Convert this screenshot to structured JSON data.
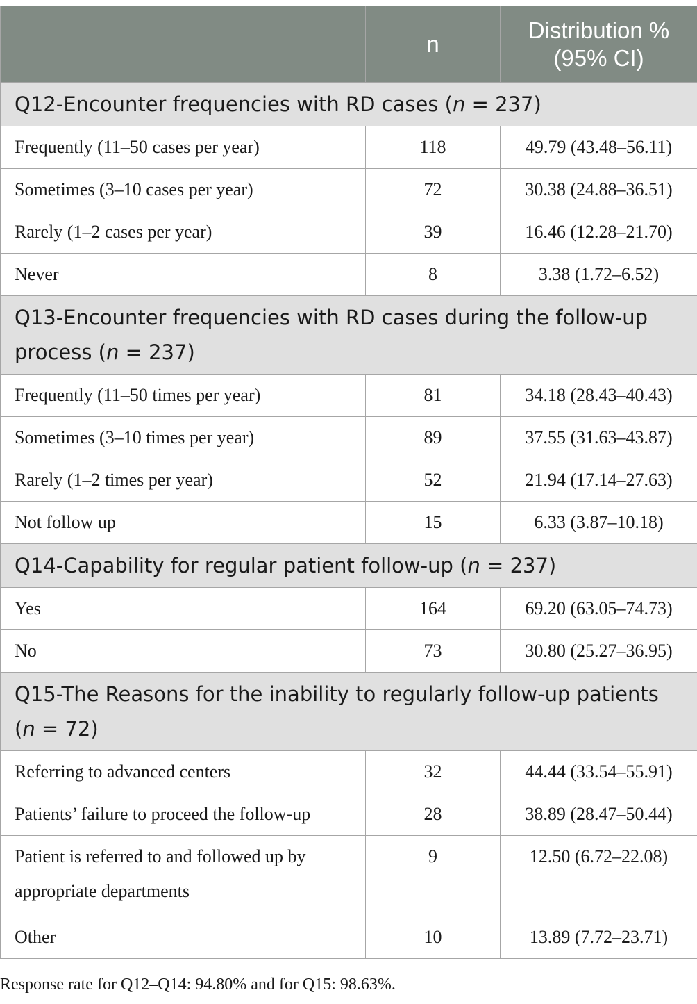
{
  "header": {
    "col1": "",
    "col2": "n",
    "col3_line1": "Distribution %",
    "col3_line2": "(95% CI)"
  },
  "sections": [
    {
      "title_prefix": "Q12-Encounter frequencies with RD cases (",
      "title_n": "n",
      "title_suffix": " = 237)",
      "rows": [
        {
          "label": "Frequently (11–50 cases per year)",
          "n": "118",
          "dist": "49.79 (43.48–56.11)"
        },
        {
          "label": "Sometimes (3–10 cases per year)",
          "n": "72",
          "dist": "30.38 (24.88–36.51)"
        },
        {
          "label": "Rarely (1–2 cases per year)",
          "n": "39",
          "dist": "16.46 (12.28–21.70)"
        },
        {
          "label": "Never",
          "n": "8",
          "dist": "3.38 (1.72–6.52)"
        }
      ]
    },
    {
      "title_prefix": "Q13-Encounter frequencies with RD cases during the follow-up process (",
      "title_n": "n",
      "title_suffix": " = 237)",
      "rows": [
        {
          "label": "Frequently (11–50 times per year)",
          "n": "81",
          "dist": "34.18 (28.43–40.43)"
        },
        {
          "label": "Sometimes (3–10 times per year)",
          "n": "89",
          "dist": "37.55 (31.63–43.87)"
        },
        {
          "label": "Rarely (1–2 times per year)",
          "n": "52",
          "dist": "21.94 (17.14–27.63)"
        },
        {
          "label": "Not follow up",
          "n": "15",
          "dist": "6.33 (3.87–10.18)"
        }
      ]
    },
    {
      "title_prefix": "Q14-Capability for regular patient follow-up (",
      "title_n": "n",
      "title_suffix": " = 237)",
      "rows": [
        {
          "label": "Yes",
          "n": "164",
          "dist": "69.20 (63.05–74.73)"
        },
        {
          "label": "No",
          "n": "73",
          "dist": "30.80 (25.27–36.95)"
        }
      ]
    },
    {
      "title_prefix": "Q15-The Reasons for the inability to regularly follow-up patients (",
      "title_n": "n",
      "title_suffix": " = 72)",
      "rows": [
        {
          "label": "Referring to advanced centers",
          "n": "32",
          "dist": "44.44 (33.54–55.91)"
        },
        {
          "label": "Patients’ failure to proceed the follow-up",
          "n": "28",
          "dist": "38.89 (28.47–50.44)"
        },
        {
          "label": "Patient is referred to and followed up by appropriate departments",
          "n": "9",
          "dist": "12.50 (6.72–22.08)"
        },
        {
          "label": "Other",
          "n": "10",
          "dist": "13.89 (7.72–23.71)"
        }
      ]
    }
  ],
  "footnote": "Response rate for Q12–Q14: 94.80% and for Q15: 98.63%."
}
